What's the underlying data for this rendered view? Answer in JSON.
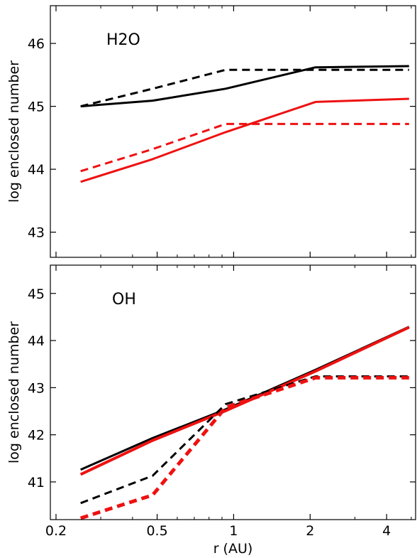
{
  "chart_data": [
    {
      "type": "line",
      "title": "H2O",
      "xlabel": "",
      "ylabel": "log enclosed number",
      "xscale": "log",
      "xlim": [
        0.19,
        5.2
      ],
      "ylim": [
        42.6,
        46.6
      ],
      "xticks": [
        "0.2",
        "0.5",
        "1",
        "2",
        "4"
      ],
      "yticks": [
        "43",
        "44",
        "45",
        "46"
      ],
      "x": [
        0.25,
        0.48,
        0.93,
        2.1,
        4.9
      ],
      "series": [
        {
          "color": "#000000",
          "style": "solid",
          "width": 3,
          "values": [
            45.0,
            45.09,
            45.28,
            45.62,
            45.64
          ]
        },
        {
          "color": "#000000",
          "style": "dashed",
          "width": 3,
          "values": [
            45.0,
            45.28,
            45.58,
            45.58,
            45.58
          ]
        },
        {
          "color": "#ee1111",
          "style": "solid",
          "width": 3,
          "values": [
            43.8,
            44.16,
            44.59,
            45.07,
            45.12
          ]
        },
        {
          "color": "#ee1111",
          "style": "dashed",
          "width": 3,
          "values": [
            43.97,
            44.32,
            44.72,
            44.72,
            44.72
          ]
        }
      ]
    },
    {
      "type": "line",
      "title": "OH",
      "xlabel": "r (AU)",
      "ylabel": "log enclosed number",
      "xscale": "log",
      "xlim": [
        0.19,
        5.2
      ],
      "ylim": [
        40.2,
        45.6
      ],
      "xticks": [
        "0.2",
        "0.5",
        "1",
        "2",
        "4"
      ],
      "yticks": [
        "41",
        "42",
        "43",
        "44",
        "45"
      ],
      "x": [
        0.25,
        0.48,
        0.93,
        2.1,
        4.9
      ],
      "series": [
        {
          "color": "#000000",
          "style": "solid",
          "width": 3,
          "values": [
            41.26,
            41.93,
            42.54,
            43.38,
            44.29
          ]
        },
        {
          "color": "#ee1111",
          "style": "solid",
          "width": 4,
          "values": [
            41.16,
            41.88,
            42.51,
            43.35,
            44.28
          ]
        },
        {
          "color": "#000000",
          "style": "dashed",
          "width": 3,
          "values": [
            40.55,
            41.13,
            42.65,
            43.24,
            43.24
          ]
        },
        {
          "color": "#ee1111",
          "style": "dashed",
          "width": 5,
          "values": [
            40.23,
            40.72,
            42.58,
            43.21,
            43.21
          ]
        }
      ]
    }
  ]
}
